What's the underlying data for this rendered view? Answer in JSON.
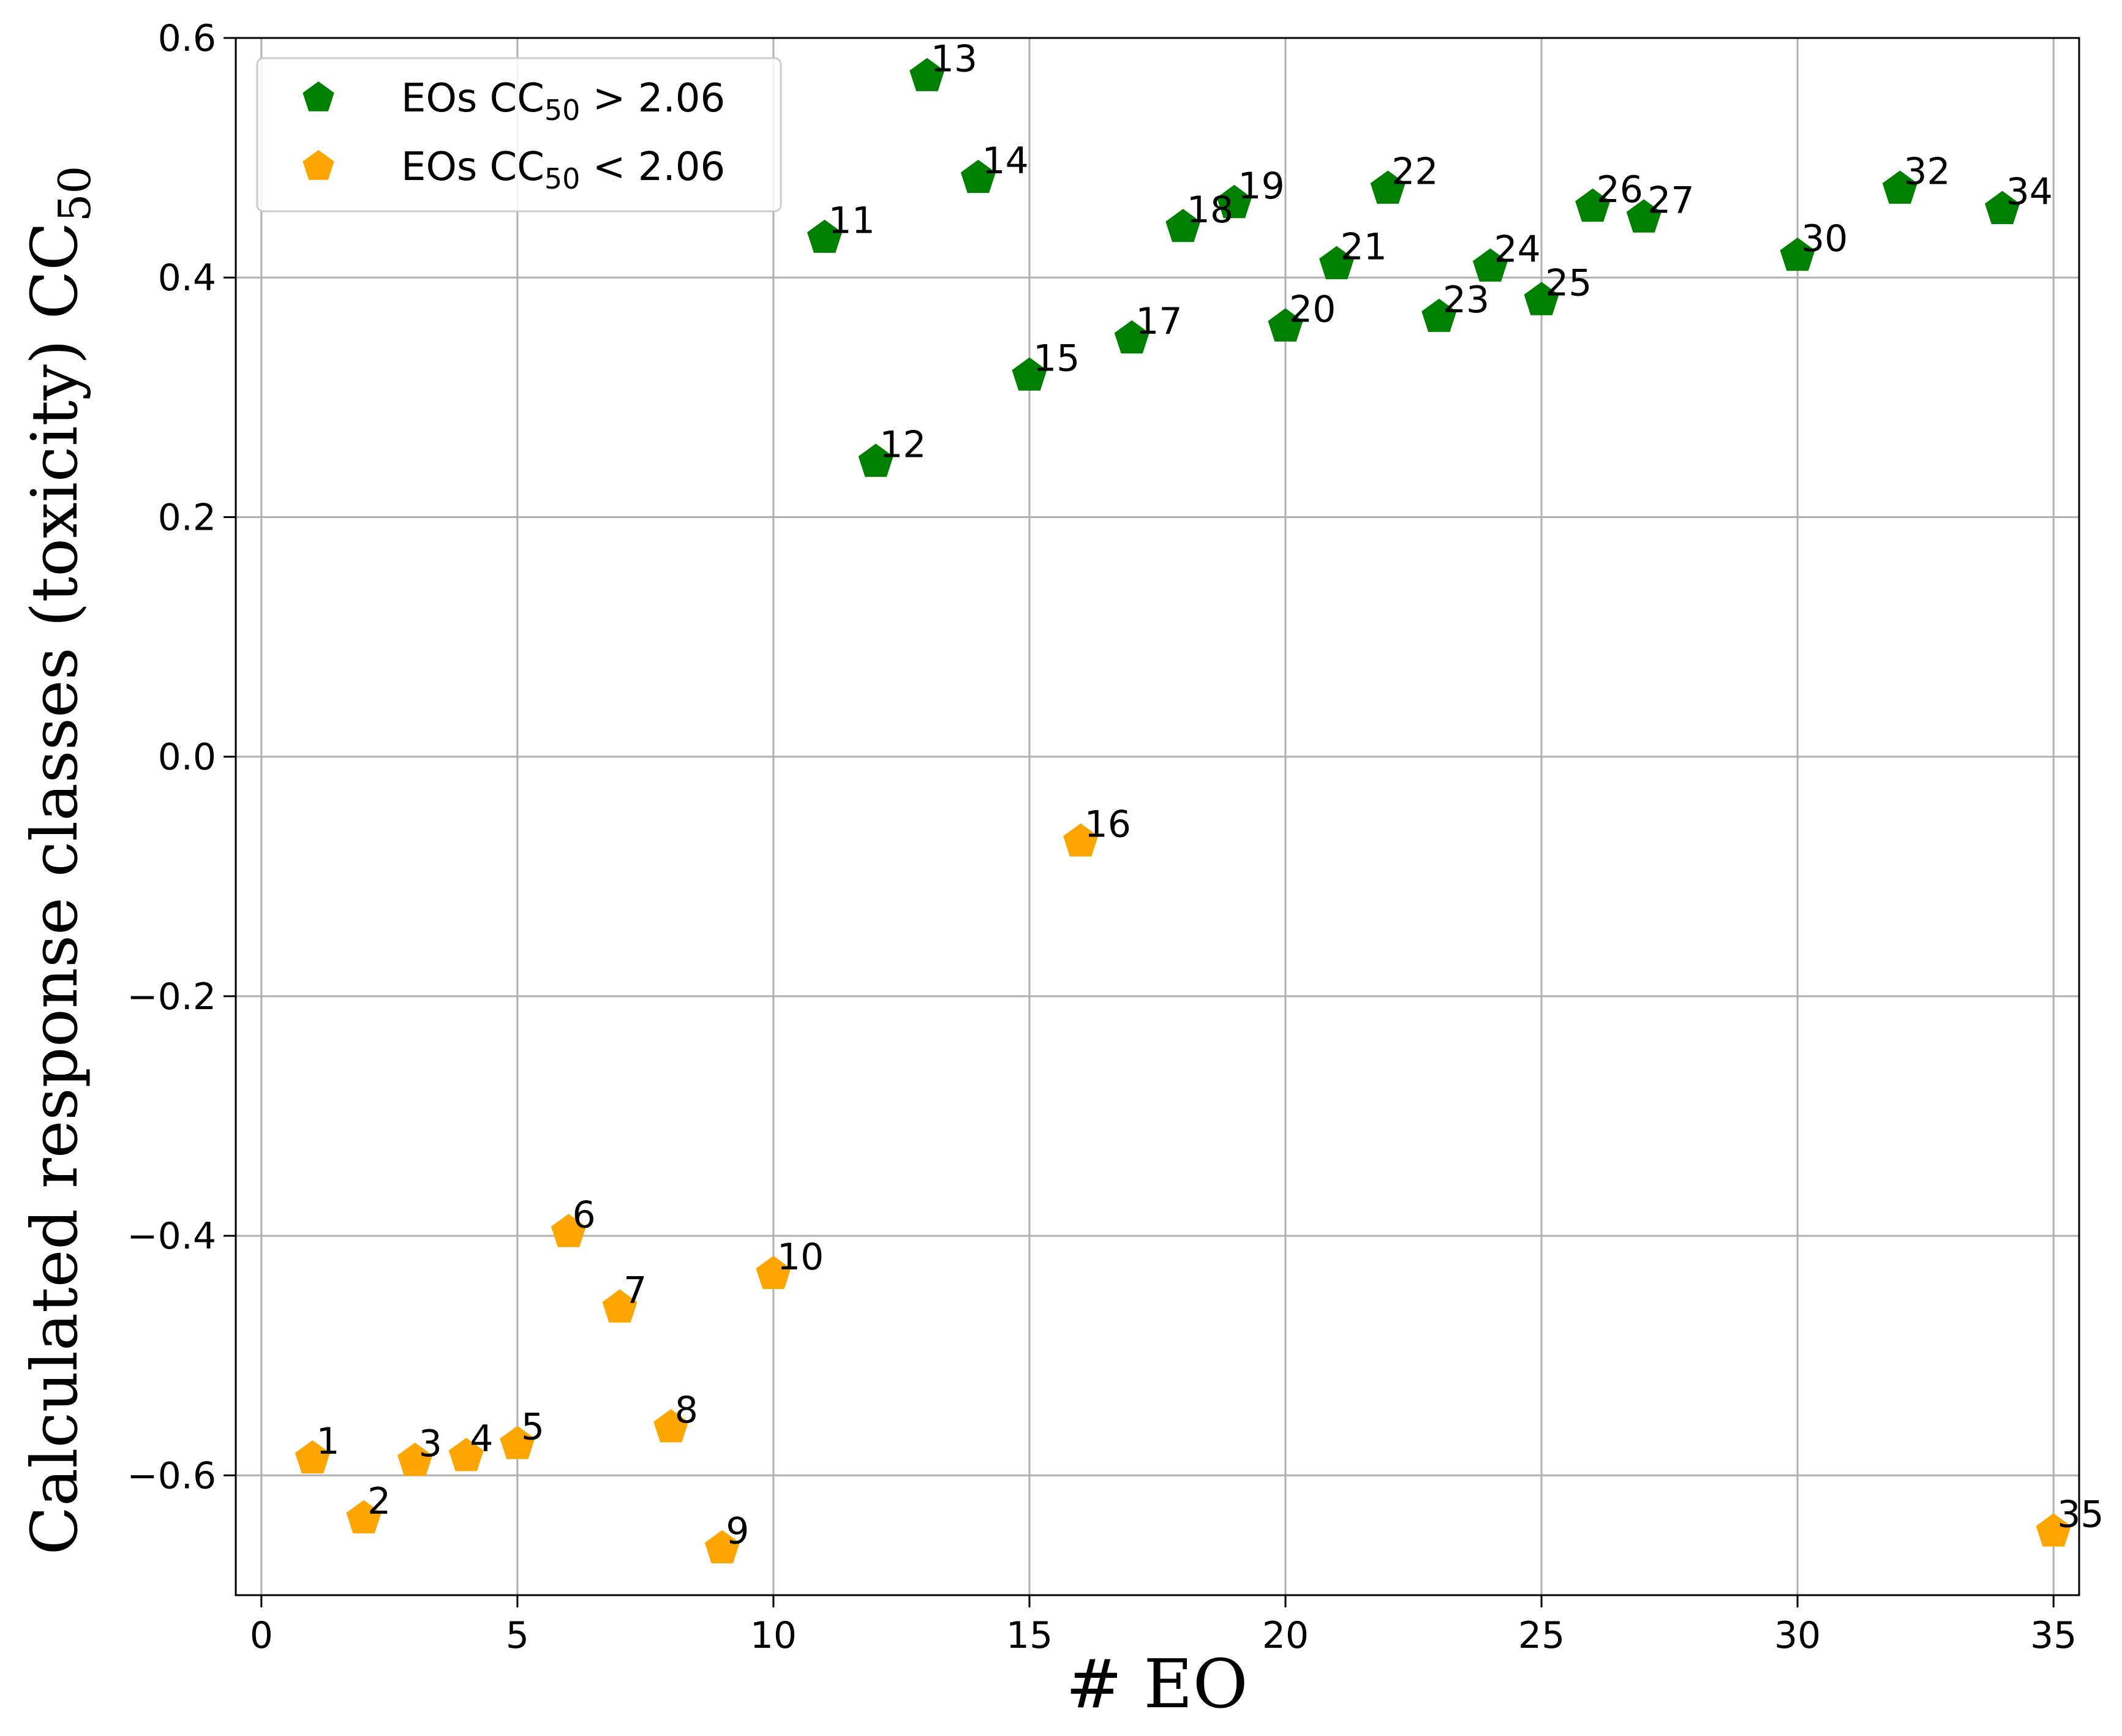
{
  "colors": {
    "above": "#008000",
    "below": "#ffa500",
    "grid": "#b0b0b0",
    "axis": "#000000",
    "background": "#ffffff"
  },
  "chart_data": {
    "type": "scatter",
    "title": "",
    "xlabel": "# EO",
    "ylabel_main": "Calculated response classes (toxicity) CC",
    "ylabel_sub": "50",
    "xlim": [
      -0.5,
      35.5
    ],
    "ylim": [
      -0.7,
      0.6
    ],
    "xticks": [
      0,
      5,
      10,
      15,
      20,
      25,
      30,
      35
    ],
    "yticks": [
      -0.6,
      -0.4,
      -0.2,
      0.0,
      0.2,
      0.4,
      0.6
    ],
    "ytick_labels": [
      "−0.6",
      "−0.4",
      "−0.2",
      "0.0",
      "0.2",
      "0.4",
      "0.6"
    ],
    "xtick_labels": [
      "0",
      "5",
      "10",
      "15",
      "20",
      "25",
      "30",
      "35"
    ],
    "grid": true,
    "legend_position": "top-left",
    "series": [
      {
        "key": "above",
        "name": "EOs CC50 > 2.06",
        "legend_prefix": "EOs CC",
        "legend_sub": "50",
        "legend_suffix": " > 2.06",
        "marker": "pentagon",
        "points": [
          {
            "x": 11,
            "y": 0.433,
            "label": "11"
          },
          {
            "x": 12,
            "y": 0.246,
            "label": "12"
          },
          {
            "x": 13,
            "y": 0.568,
            "label": "13"
          },
          {
            "x": 14,
            "y": 0.483,
            "label": "14"
          },
          {
            "x": 15,
            "y": 0.318,
            "label": "15"
          },
          {
            "x": 17,
            "y": 0.349,
            "label": "17"
          },
          {
            "x": 18,
            "y": 0.442,
            "label": "18"
          },
          {
            "x": 19,
            "y": 0.462,
            "label": "19"
          },
          {
            "x": 20,
            "y": 0.359,
            "label": "20"
          },
          {
            "x": 21,
            "y": 0.411,
            "label": "21"
          },
          {
            "x": 22,
            "y": 0.474,
            "label": "22"
          },
          {
            "x": 23,
            "y": 0.367,
            "label": "23"
          },
          {
            "x": 24,
            "y": 0.409,
            "label": "24"
          },
          {
            "x": 25,
            "y": 0.381,
            "label": "25"
          },
          {
            "x": 26,
            "y": 0.459,
            "label": "26"
          },
          {
            "x": 27,
            "y": 0.45,
            "label": "27"
          },
          {
            "x": 30,
            "y": 0.418,
            "label": "30"
          },
          {
            "x": 32,
            "y": 0.474,
            "label": "32"
          },
          {
            "x": 34,
            "y": 0.457,
            "label": "34"
          }
        ]
      },
      {
        "key": "below",
        "name": "EOs CC50 < 2.06",
        "legend_prefix": "EOs CC",
        "legend_sub": "50",
        "legend_suffix": " < 2.06",
        "marker": "pentagon",
        "points": [
          {
            "x": 1,
            "y": -0.586,
            "label": "1"
          },
          {
            "x": 2,
            "y": -0.636,
            "label": "2"
          },
          {
            "x": 3,
            "y": -0.588,
            "label": "3"
          },
          {
            "x": 4,
            "y": -0.584,
            "label": "4"
          },
          {
            "x": 5,
            "y": -0.574,
            "label": "5"
          },
          {
            "x": 6,
            "y": -0.397,
            "label": "6"
          },
          {
            "x": 7,
            "y": -0.46,
            "label": "7"
          },
          {
            "x": 8,
            "y": -0.56,
            "label": "8"
          },
          {
            "x": 9,
            "y": -0.661,
            "label": "9"
          },
          {
            "x": 10,
            "y": -0.432,
            "label": "10"
          },
          {
            "x": 16,
            "y": -0.071,
            "label": "16"
          },
          {
            "x": 35,
            "y": -0.647,
            "label": "35"
          }
        ]
      }
    ]
  }
}
